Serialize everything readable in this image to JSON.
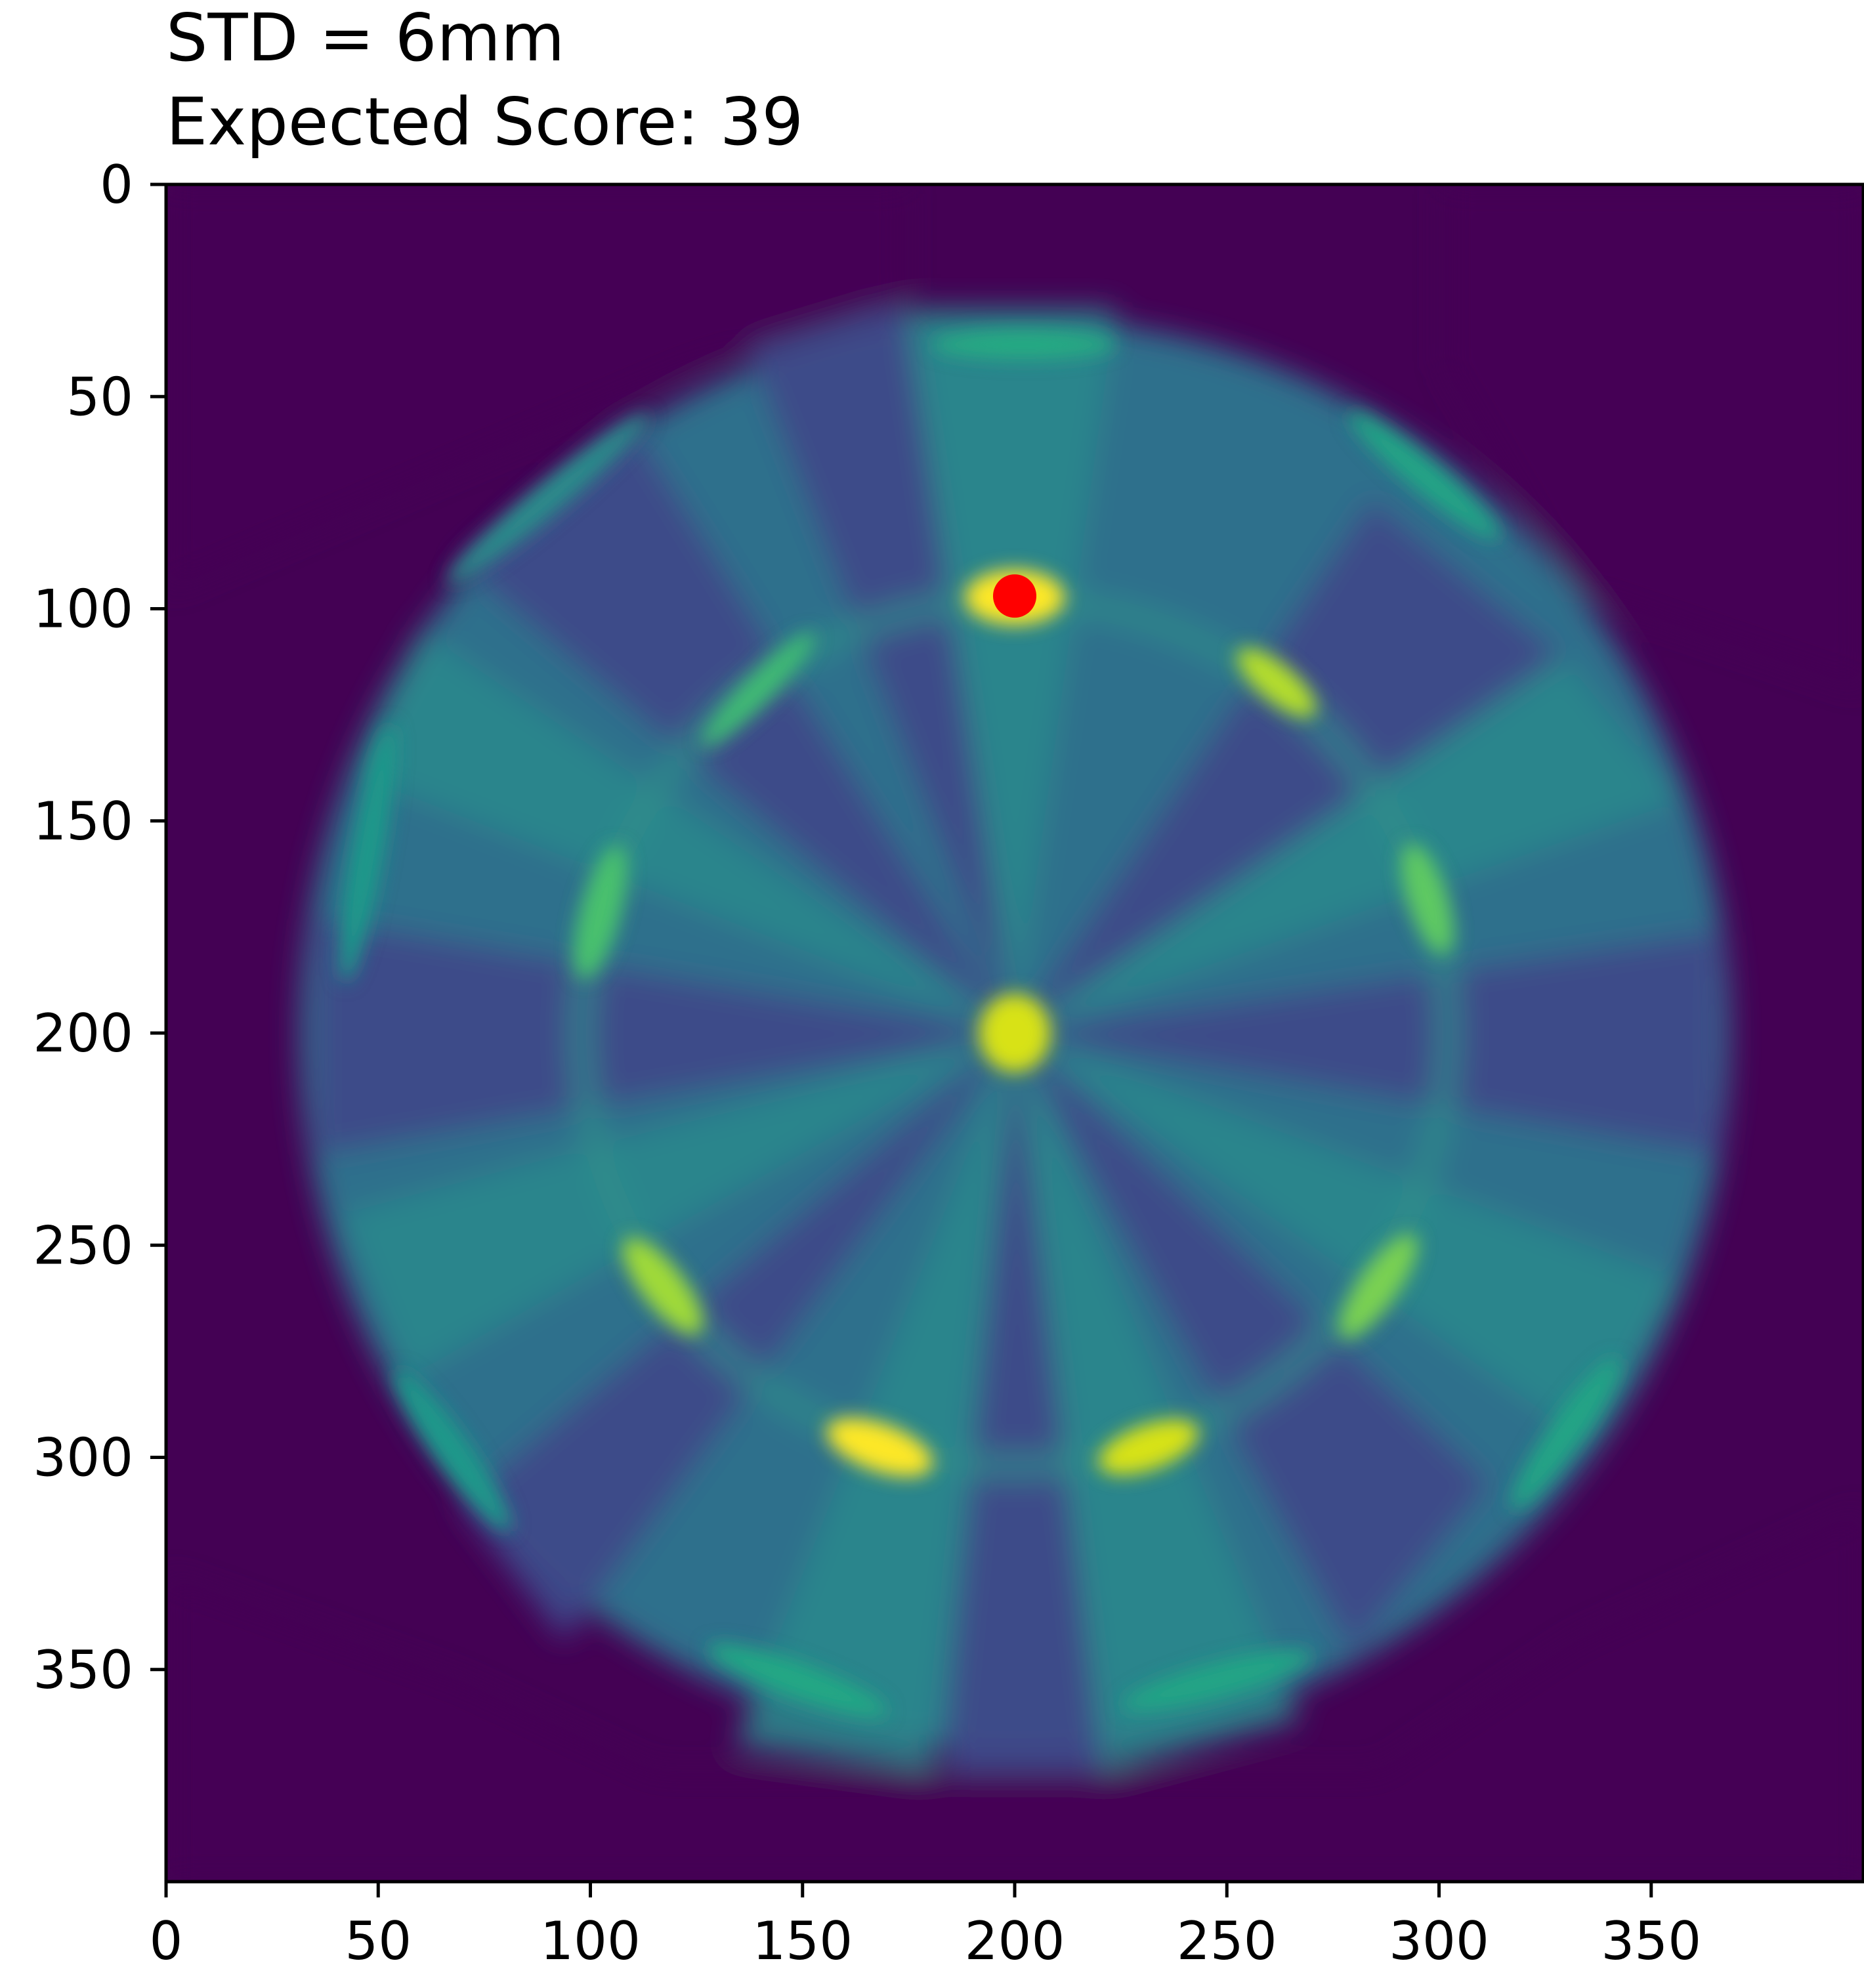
{
  "chart_data": {
    "type": "heatmap",
    "title_lines": [
      "STD = 6mm",
      "Expected Score: 39"
    ],
    "xlabel": "",
    "ylabel": "",
    "xlim": [
      0,
      400
    ],
    "ylim": [
      400,
      0
    ],
    "x_ticks": [
      0,
      50,
      100,
      150,
      200,
      250,
      300,
      350
    ],
    "y_ticks": [
      0,
      50,
      100,
      150,
      200,
      250,
      300,
      350
    ],
    "grid": false,
    "colormap": "viridis",
    "board_center": [
      200,
      200
    ],
    "optimal_aim": {
      "x": 200,
      "y": 97,
      "color": "#ff0000"
    },
    "background_color": "#440154"
  }
}
